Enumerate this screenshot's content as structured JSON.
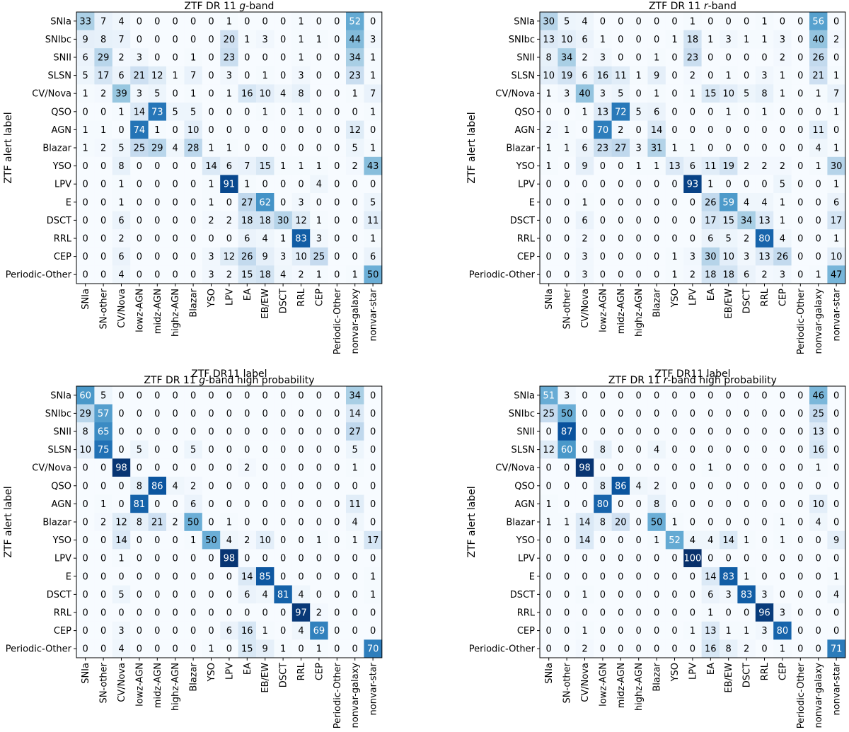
{
  "chart_data": [
    {
      "type": "heatmap",
      "title_prefix": "ZTF DR 11 ",
      "title_band": "g",
      "title_suffix": "-band",
      "xlabel": "ZTF DR11 label",
      "ylabel": "ZTF alert label",
      "rows": [
        "SNIa",
        "SNIbc",
        "SNII",
        "SLSN",
        "CV/Nova",
        "QSO",
        "AGN",
        "Blazar",
        "YSO",
        "LPV",
        "E",
        "DSCT",
        "RRL",
        "CEP",
        "Periodic-Other"
      ],
      "columns": [
        "SNIa",
        "SN-other",
        "CV/Nova",
        "lowz-AGN",
        "midz-AGN",
        "highz-AGN",
        "Blazar",
        "YSO",
        "LPV",
        "EA",
        "EB/EW",
        "DSCT",
        "RRL",
        "CEP",
        "Periodic-Other",
        "nonvar-galaxy",
        "nonvar-star"
      ],
      "values": [
        [
          33,
          7,
          4,
          0,
          0,
          0,
          0,
          0,
          1,
          0,
          0,
          0,
          1,
          0,
          0,
          52,
          0
        ],
        [
          9,
          8,
          7,
          0,
          0,
          0,
          0,
          0,
          20,
          1,
          3,
          0,
          1,
          1,
          0,
          44,
          3
        ],
        [
          6,
          29,
          2,
          3,
          0,
          0,
          1,
          0,
          23,
          0,
          0,
          0,
          1,
          0,
          0,
          34,
          1
        ],
        [
          5,
          17,
          6,
          21,
          12,
          1,
          7,
          0,
          3,
          0,
          1,
          0,
          3,
          0,
          0,
          23,
          1
        ],
        [
          1,
          2,
          39,
          3,
          5,
          0,
          1,
          0,
          1,
          16,
          10,
          4,
          8,
          0,
          0,
          1,
          7
        ],
        [
          0,
          0,
          1,
          14,
          73,
          5,
          5,
          0,
          0,
          0,
          1,
          0,
          1,
          0,
          0,
          0,
          1
        ],
        [
          1,
          1,
          0,
          74,
          1,
          0,
          10,
          0,
          0,
          0,
          0,
          0,
          0,
          0,
          0,
          12,
          0
        ],
        [
          1,
          2,
          5,
          25,
          29,
          4,
          28,
          1,
          1,
          0,
          0,
          0,
          0,
          0,
          0,
          5,
          1
        ],
        [
          0,
          0,
          8,
          0,
          0,
          0,
          0,
          14,
          6,
          7,
          15,
          1,
          1,
          1,
          0,
          2,
          43
        ],
        [
          0,
          0,
          1,
          0,
          0,
          0,
          0,
          1,
          91,
          1,
          0,
          0,
          0,
          4,
          0,
          0,
          0
        ],
        [
          0,
          0,
          1,
          0,
          0,
          0,
          0,
          1,
          0,
          27,
          62,
          0,
          3,
          0,
          0,
          0,
          5
        ],
        [
          0,
          0,
          6,
          0,
          0,
          0,
          0,
          2,
          2,
          18,
          18,
          30,
          12,
          1,
          0,
          0,
          11
        ],
        [
          0,
          0,
          2,
          0,
          0,
          0,
          0,
          0,
          0,
          6,
          4,
          1,
          83,
          3,
          0,
          0,
          1
        ],
        [
          0,
          0,
          6,
          0,
          0,
          0,
          0,
          3,
          12,
          26,
          9,
          3,
          10,
          25,
          0,
          0,
          6
        ],
        [
          0,
          0,
          4,
          0,
          0,
          0,
          0,
          3,
          2,
          15,
          18,
          4,
          2,
          1,
          0,
          1,
          50
        ]
      ]
    },
    {
      "type": "heatmap",
      "title_prefix": "ZTF DR 11 ",
      "title_band": "r",
      "title_suffix": "-band",
      "xlabel": "ZTF DR11 label",
      "ylabel": "ZTF alert label",
      "rows": [
        "SNIa",
        "SNIbc",
        "SNII",
        "SLSN",
        "CV/Nova",
        "QSO",
        "AGN",
        "Blazar",
        "YSO",
        "LPV",
        "E",
        "DSCT",
        "RRL",
        "CEP",
        "Periodic-Other"
      ],
      "columns": [
        "SNIa",
        "SN-other",
        "CV/Nova",
        "lowz-AGN",
        "midz-AGN",
        "highz-AGN",
        "Blazar",
        "YSO",
        "LPV",
        "EA",
        "EB/EW",
        "DSCT",
        "RRL",
        "CEP",
        "Periodic-Other",
        "nonvar-galaxy",
        "nonvar-star"
      ],
      "values": [
        [
          30,
          5,
          4,
          0,
          0,
          0,
          0,
          0,
          1,
          0,
          0,
          0,
          1,
          0,
          0,
          56,
          0
        ],
        [
          13,
          10,
          6,
          1,
          0,
          0,
          0,
          1,
          18,
          1,
          3,
          1,
          1,
          3,
          0,
          40,
          2
        ],
        [
          8,
          34,
          2,
          3,
          0,
          0,
          1,
          0,
          23,
          0,
          0,
          0,
          0,
          2,
          0,
          26,
          0
        ],
        [
          10,
          19,
          6,
          16,
          11,
          1,
          9,
          0,
          2,
          0,
          1,
          0,
          3,
          1,
          0,
          21,
          1
        ],
        [
          1,
          3,
          40,
          3,
          5,
          0,
          1,
          0,
          1,
          15,
          10,
          5,
          8,
          1,
          0,
          1,
          7
        ],
        [
          0,
          0,
          1,
          13,
          72,
          5,
          6,
          0,
          0,
          0,
          1,
          0,
          1,
          0,
          0,
          0,
          1
        ],
        [
          2,
          1,
          0,
          70,
          2,
          0,
          14,
          0,
          0,
          0,
          0,
          0,
          0,
          0,
          0,
          11,
          0
        ],
        [
          1,
          1,
          6,
          23,
          27,
          3,
          31,
          1,
          1,
          0,
          0,
          0,
          0,
          0,
          0,
          4,
          1
        ],
        [
          1,
          0,
          9,
          0,
          0,
          1,
          1,
          13,
          6,
          11,
          19,
          2,
          2,
          2,
          0,
          1,
          30
        ],
        [
          0,
          0,
          0,
          0,
          0,
          0,
          0,
          0,
          93,
          1,
          0,
          0,
          0,
          5,
          0,
          0,
          1
        ],
        [
          0,
          0,
          1,
          0,
          0,
          0,
          0,
          0,
          0,
          26,
          59,
          4,
          4,
          1,
          0,
          0,
          6
        ],
        [
          0,
          0,
          6,
          0,
          0,
          0,
          0,
          0,
          0,
          17,
          15,
          34,
          13,
          1,
          0,
          0,
          17
        ],
        [
          0,
          0,
          2,
          0,
          0,
          0,
          0,
          0,
          0,
          6,
          5,
          2,
          80,
          4,
          0,
          0,
          1
        ],
        [
          0,
          0,
          3,
          0,
          0,
          0,
          0,
          1,
          3,
          30,
          10,
          3,
          13,
          26,
          0,
          0,
          10
        ],
        [
          0,
          0,
          3,
          0,
          0,
          0,
          0,
          1,
          2,
          18,
          18,
          6,
          2,
          3,
          0,
          1,
          47
        ]
      ]
    },
    {
      "type": "heatmap",
      "title_prefix": "ZTF DR 11 ",
      "title_band": "g",
      "title_suffix": "-band high probability",
      "xlabel": "ZTF DR11 label",
      "ylabel": "ZTF alert label",
      "rows": [
        "SNIa",
        "SNIbc",
        "SNII",
        "SLSN",
        "CV/Nova",
        "QSO",
        "AGN",
        "Blazar",
        "YSO",
        "LPV",
        "E",
        "DSCT",
        "RRL",
        "CEP",
        "Periodic-Other"
      ],
      "columns": [
        "SNIa",
        "SN-other",
        "CV/Nova",
        "lowz-AGN",
        "midz-AGN",
        "highz-AGN",
        "Blazar",
        "YSO",
        "LPV",
        "EA",
        "EB/EW",
        "DSCT",
        "RRL",
        "CEP",
        "Periodic-Other",
        "nonvar-galaxy",
        "nonvar-star"
      ],
      "values": [
        [
          60,
          5,
          0,
          0,
          0,
          0,
          0,
          0,
          0,
          0,
          0,
          0,
          0,
          0,
          0,
          34,
          0
        ],
        [
          29,
          57,
          0,
          0,
          0,
          0,
          0,
          0,
          0,
          0,
          0,
          0,
          0,
          0,
          0,
          14,
          0
        ],
        [
          8,
          65,
          0,
          0,
          0,
          0,
          0,
          0,
          0,
          0,
          0,
          0,
          0,
          0,
          0,
          27,
          0
        ],
        [
          10,
          75,
          0,
          5,
          0,
          0,
          5,
          0,
          0,
          0,
          0,
          0,
          0,
          0,
          0,
          5,
          0
        ],
        [
          0,
          0,
          98,
          0,
          0,
          0,
          0,
          0,
          0,
          2,
          0,
          0,
          0,
          0,
          0,
          1,
          0
        ],
        [
          0,
          0,
          0,
          8,
          86,
          4,
          2,
          0,
          0,
          0,
          0,
          0,
          0,
          0,
          0,
          0,
          0
        ],
        [
          0,
          1,
          0,
          81,
          0,
          0,
          6,
          0,
          0,
          0,
          0,
          0,
          0,
          0,
          0,
          11,
          0
        ],
        [
          0,
          2,
          12,
          8,
          21,
          2,
          50,
          0,
          1,
          0,
          0,
          0,
          0,
          0,
          0,
          4,
          0
        ],
        [
          0,
          0,
          14,
          0,
          0,
          0,
          1,
          50,
          4,
          2,
          10,
          0,
          0,
          1,
          0,
          1,
          17
        ],
        [
          0,
          0,
          1,
          0,
          0,
          0,
          0,
          0,
          98,
          0,
          0,
          0,
          0,
          0,
          0,
          0,
          0
        ],
        [
          0,
          0,
          0,
          0,
          0,
          0,
          0,
          0,
          0,
          14,
          85,
          0,
          0,
          0,
          0,
          0,
          1
        ],
        [
          0,
          0,
          5,
          0,
          0,
          0,
          0,
          0,
          0,
          6,
          4,
          81,
          4,
          0,
          0,
          0,
          1
        ],
        [
          0,
          0,
          0,
          0,
          0,
          0,
          0,
          0,
          0,
          0,
          0,
          0,
          97,
          2,
          0,
          0,
          0
        ],
        [
          0,
          0,
          3,
          0,
          0,
          0,
          0,
          0,
          6,
          16,
          1,
          0,
          4,
          69,
          0,
          0,
          0
        ],
        [
          0,
          0,
          4,
          0,
          0,
          0,
          0,
          1,
          0,
          15,
          9,
          1,
          0,
          1,
          0,
          0,
          70
        ]
      ]
    },
    {
      "type": "heatmap",
      "title_prefix": "ZTF DR 11 ",
      "title_band": "r",
      "title_suffix": "-band high probability",
      "xlabel": "ZTF DR11 label",
      "ylabel": "ZTF alert label",
      "rows": [
        "SNIa",
        "SNIbc",
        "SNII",
        "SLSN",
        "CV/Nova",
        "QSO",
        "AGN",
        "Blazar",
        "YSO",
        "LPV",
        "E",
        "DSCT",
        "RRL",
        "CEP",
        "Periodic-Other"
      ],
      "columns": [
        "SNIa",
        "SN-other",
        "CV/Nova",
        "lowz-AGN",
        "midz-AGN",
        "highz-AGN",
        "Blazar",
        "YSO",
        "LPV",
        "EA",
        "EB/EW",
        "DSCT",
        "RRL",
        "CEP",
        "Periodic-Other",
        "nonvar-galaxy",
        "nonvar-star"
      ],
      "values": [
        [
          51,
          3,
          0,
          0,
          0,
          0,
          0,
          0,
          0,
          0,
          0,
          0,
          0,
          0,
          0,
          46,
          0
        ],
        [
          25,
          50,
          0,
          0,
          0,
          0,
          0,
          0,
          0,
          0,
          0,
          0,
          0,
          0,
          0,
          25,
          0
        ],
        [
          0,
          87,
          0,
          0,
          0,
          0,
          0,
          0,
          0,
          0,
          0,
          0,
          0,
          0,
          0,
          13,
          0
        ],
        [
          12,
          60,
          0,
          8,
          0,
          0,
          4,
          0,
          0,
          0,
          0,
          0,
          0,
          0,
          0,
          16,
          0
        ],
        [
          0,
          0,
          98,
          0,
          0,
          0,
          0,
          0,
          0,
          1,
          0,
          0,
          0,
          0,
          0,
          1,
          0
        ],
        [
          0,
          0,
          0,
          8,
          86,
          4,
          2,
          0,
          0,
          0,
          0,
          0,
          0,
          0,
          0,
          0,
          0
        ],
        [
          1,
          0,
          0,
          80,
          0,
          0,
          8,
          0,
          0,
          0,
          0,
          0,
          0,
          0,
          0,
          10,
          0
        ],
        [
          1,
          1,
          14,
          8,
          20,
          0,
          50,
          1,
          0,
          0,
          0,
          0,
          0,
          1,
          0,
          4,
          0
        ],
        [
          0,
          0,
          14,
          0,
          0,
          0,
          1,
          52,
          4,
          4,
          14,
          1,
          0,
          1,
          0,
          0,
          9
        ],
        [
          0,
          0,
          0,
          0,
          0,
          0,
          0,
          0,
          100,
          0,
          0,
          0,
          0,
          0,
          0,
          0,
          0
        ],
        [
          0,
          0,
          0,
          0,
          0,
          0,
          0,
          0,
          0,
          14,
          83,
          1,
          0,
          0,
          0,
          0,
          1
        ],
        [
          0,
          0,
          1,
          0,
          0,
          0,
          0,
          0,
          0,
          6,
          3,
          83,
          3,
          0,
          0,
          0,
          4
        ],
        [
          0,
          0,
          0,
          0,
          0,
          0,
          0,
          0,
          0,
          1,
          0,
          0,
          96,
          3,
          0,
          0,
          0
        ],
        [
          0,
          0,
          1,
          0,
          0,
          0,
          0,
          0,
          1,
          13,
          1,
          1,
          3,
          80,
          0,
          0,
          0
        ],
        [
          0,
          0,
          2,
          0,
          0,
          0,
          0,
          0,
          0,
          16,
          8,
          2,
          0,
          1,
          0,
          0,
          71
        ]
      ]
    }
  ],
  "colormap": {
    "name": "Blues",
    "low": "#f7fbff",
    "high": "#08306b",
    "max_value": 100
  }
}
